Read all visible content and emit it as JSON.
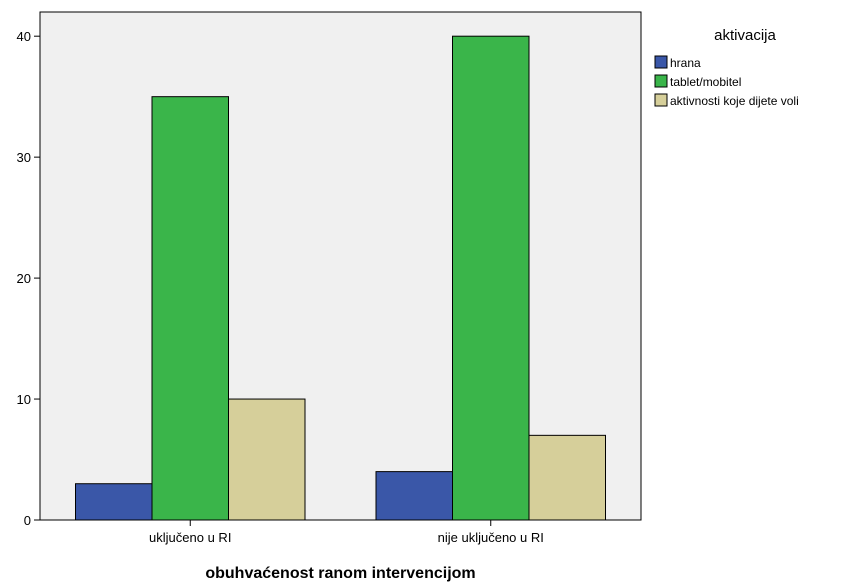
{
  "chart_data": {
    "type": "bar",
    "categories": [
      "uključeno u RI",
      "nije uključeno u RI"
    ],
    "series": [
      {
        "name": "hrana",
        "values": [
          3,
          4
        ],
        "color": "#3a57a8"
      },
      {
        "name": "tablet/mobitel",
        "values": [
          35,
          40
        ],
        "color": "#3ab54a"
      },
      {
        "name": "aktivnosti koje dijete voli",
        "values": [
          10,
          7
        ],
        "color": "#d6cf9a"
      }
    ],
    "xlabel": "obuhvaćenost ranom intervencijom",
    "ylabel": "",
    "ylim": [
      0,
      42
    ],
    "yticks": [
      0,
      10,
      20,
      30,
      40
    ],
    "legend_title": "aktivacija",
    "legend_position": "right",
    "plot_background": "#f0f0f0"
  }
}
